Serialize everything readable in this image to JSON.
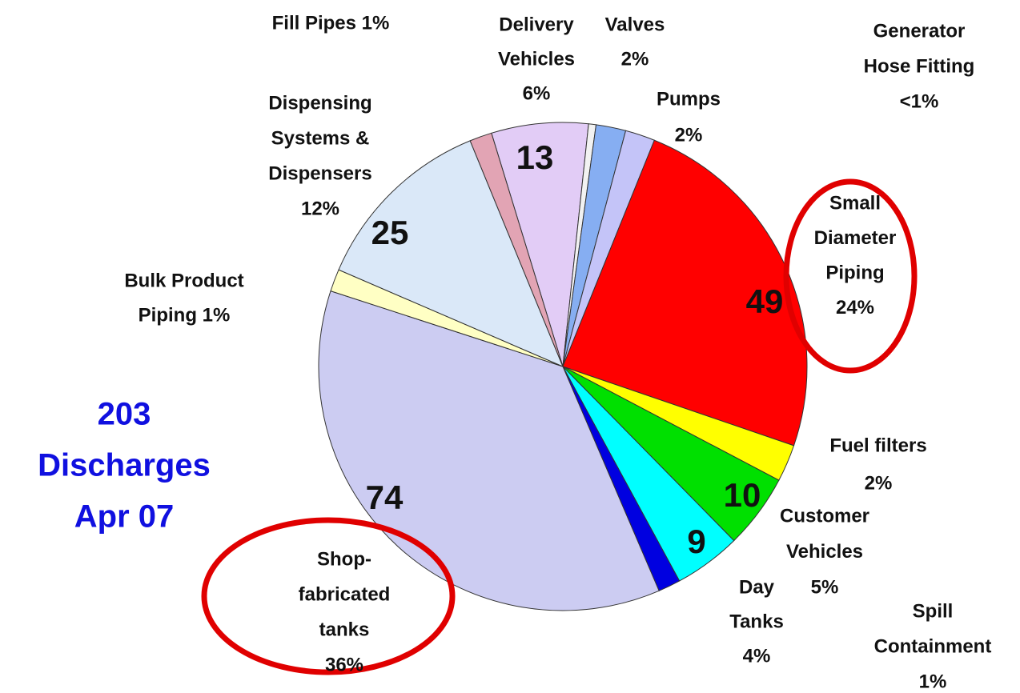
{
  "chart_data": {
    "type": "pie",
    "categories": [
      [
        "Delivery",
        "Vehicles",
        "6%"
      ],
      [
        "Generator",
        "Hose Fitting",
        "<1%"
      ],
      [
        "Valves",
        "2%"
      ],
      [
        "Pumps",
        "2%"
      ],
      [
        "Small",
        "Diameter",
        "Piping",
        "24%"
      ],
      [
        "Fuel filters",
        "2%"
      ],
      [
        "Customer",
        "Vehicles",
        "5%"
      ],
      [
        "Day",
        "Tanks",
        "4%"
      ],
      [
        "Spill",
        "Containment",
        "1%"
      ],
      [
        "Shop-",
        "fabricated",
        "tanks",
        "36%"
      ],
      [
        "Bulk Product",
        "Piping 1%"
      ],
      [
        "Dispensing",
        "Systems &",
        "Dispensers",
        "12%"
      ],
      [
        "Fill Pipes 1%"
      ]
    ],
    "values": [
      13,
      1,
      4,
      4,
      49,
      5,
      10,
      9,
      3,
      74,
      3,
      25,
      3
    ],
    "value_labels": [
      "13",
      null,
      null,
      null,
      "49",
      null,
      "10",
      "9",
      null,
      "74",
      null,
      "25",
      null
    ],
    "colors": [
      "#e2ccf6",
      "#f2f2f2",
      "#86aef2",
      "#c4c4f8",
      "#ff0000",
      "#ffff00",
      "#00e000",
      "#00ffff",
      "#0000e0",
      "#ccccf2",
      "#ffffc4",
      "#dae8f8",
      "#e2a4b4"
    ],
    "annotation": [
      "203",
      "Discharges",
      "Apr 07"
    ]
  }
}
